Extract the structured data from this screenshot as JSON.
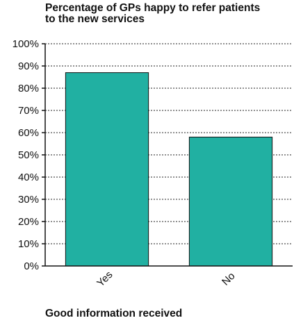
{
  "chart_data": {
    "type": "bar",
    "title_lines": [
      "Percentage of GPs happy to refer patients",
      "to the new services"
    ],
    "categories": [
      "Yes",
      "No"
    ],
    "values": [
      87,
      58
    ],
    "value_unit": "%",
    "y_ticks": [
      "0%",
      "10%",
      "20%",
      "30%",
      "40%",
      "50%",
      "60%",
      "70%",
      "80%",
      "90%",
      "100%"
    ],
    "ylim": [
      0,
      100
    ],
    "grid": "dotted horizontal",
    "bar_color": "#21b0a2",
    "xlabel": "",
    "ylabel": ""
  },
  "footer": {
    "label": "Good information received"
  }
}
